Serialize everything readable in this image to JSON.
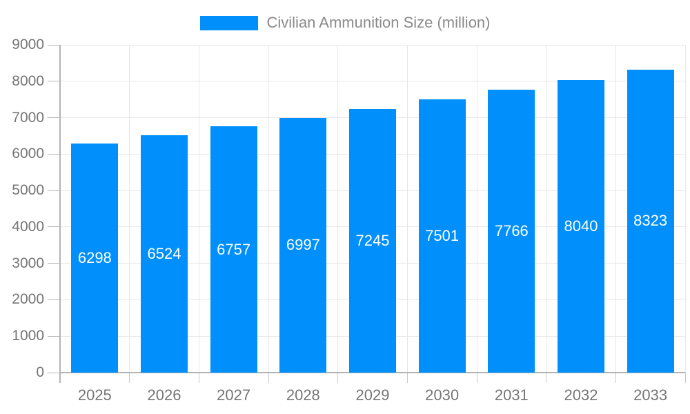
{
  "chart_data": {
    "type": "bar",
    "title": "",
    "legend_position": "top",
    "legend": [
      "Civilian Ammunition Size (million)"
    ],
    "categories": [
      "2025",
      "2026",
      "2027",
      "2028",
      "2029",
      "2030",
      "2031",
      "2032",
      "2033"
    ],
    "series": [
      {
        "name": "Civilian Ammunition Size (million)",
        "values": [
          6298,
          6524,
          6757,
          6997,
          7245,
          7501,
          7766,
          8040,
          8323
        ]
      }
    ],
    "xlabel": "",
    "ylabel": "",
    "ylim": [
      0,
      9000
    ],
    "yticks": [
      0,
      1000,
      2000,
      3000,
      4000,
      5000,
      6000,
      7000,
      8000,
      9000
    ],
    "grid": true,
    "bar_labels_inside": true
  },
  "colors": {
    "bar": "#008FFB",
    "bar_label_text": "#ffffff",
    "axis_line": "#b3b3b3",
    "gridline": "#e7e7e7",
    "axis_text": "#757575",
    "legend_text": "#8a8a8a",
    "background": "#ffffff"
  }
}
